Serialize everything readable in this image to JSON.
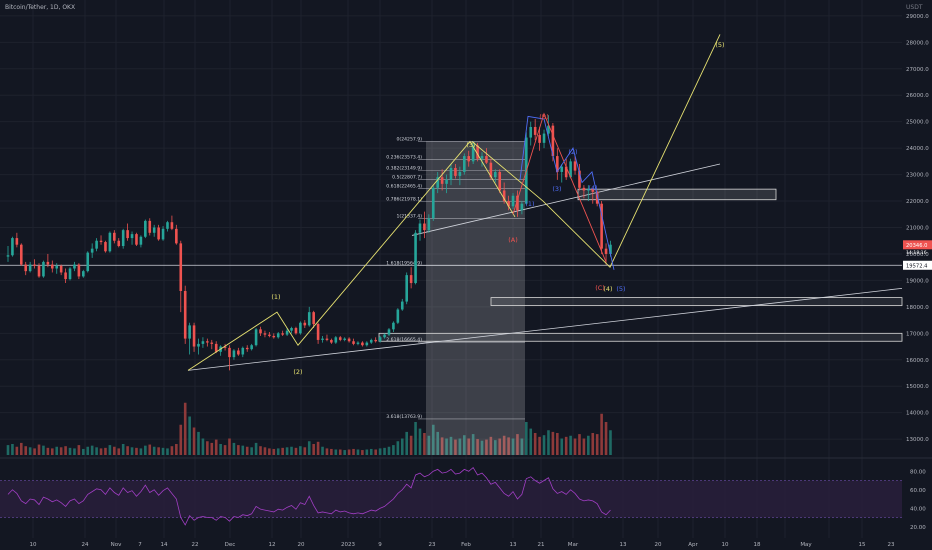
{
  "header": {
    "symbol": "Bitcoin/Tether, 1D, OKX",
    "currency": "USDT"
  },
  "colors": {
    "bg": "#131722",
    "grid": "#1e222d",
    "axis_text": "#b2b5be",
    "up": "#26a69a",
    "down": "#ef5350",
    "vol_up": "#1f6a64",
    "vol_down": "#8e3a3a",
    "wave_yellow": "#e5e070",
    "wave_red": "#ef5350",
    "wave_blue": "#4f6df5",
    "rsi": "#a13ec4",
    "rsi_band": "#2a1f3d",
    "fib": "#d1d4dc",
    "box": "#d9d9d9"
  },
  "chart_data": {
    "type": "candlestick",
    "y_axis": {
      "min": 12400,
      "max": 29600,
      "ticks": [
        13000,
        14000,
        15000,
        16000,
        17000,
        18000,
        19000,
        20000,
        21000,
        22000,
        23000,
        24000,
        25000,
        26000,
        27000,
        28000,
        29000
      ]
    },
    "x_axis_labels": [
      "10",
      "24",
      "Nov",
      "7",
      "14",
      "22",
      "Dec",
      "12",
      "20",
      "2023",
      "9",
      "23",
      "Feb",
      "13",
      "21",
      "Mar",
      "13",
      "20",
      "Apr",
      "10",
      "18",
      "May",
      "15",
      "23"
    ],
    "last_price": "20346.0",
    "countdown": "14:18:16",
    "level_label": "19572.4",
    "ohlc": [
      [
        19900,
        20300,
        19700,
        19950
      ],
      [
        19950,
        20650,
        19900,
        20600
      ],
      [
        20600,
        20800,
        20250,
        20350
      ],
      [
        20350,
        20400,
        19550,
        19600
      ],
      [
        19600,
        19700,
        19200,
        19350
      ],
      [
        19350,
        19700,
        19300,
        19600
      ],
      [
        19600,
        19800,
        19450,
        19550
      ],
      [
        19550,
        19650,
        19100,
        19150
      ],
      [
        19150,
        19750,
        19100,
        19700
      ],
      [
        19700,
        20000,
        19500,
        19600
      ],
      [
        19600,
        19750,
        19300,
        19450
      ],
      [
        19450,
        19650,
        19250,
        19550
      ],
      [
        19550,
        19600,
        19200,
        19300
      ],
      [
        19300,
        19450,
        18900,
        19050
      ],
      [
        19050,
        19500,
        19000,
        19450
      ],
      [
        19450,
        19700,
        19350,
        19600
      ],
      [
        19600,
        19650,
        19050,
        19150
      ],
      [
        19150,
        19400,
        19100,
        19350
      ],
      [
        19350,
        20100,
        19300,
        20050
      ],
      [
        20050,
        20400,
        19850,
        20200
      ],
      [
        20200,
        20600,
        20100,
        20500
      ],
      [
        20500,
        20700,
        20350,
        20450
      ],
      [
        20450,
        20500,
        20050,
        20100
      ],
      [
        20100,
        20850,
        20050,
        20800
      ],
      [
        20800,
        20900,
        20400,
        20500
      ],
      [
        20500,
        20600,
        20250,
        20300
      ],
      [
        20300,
        20950,
        20200,
        20900
      ],
      [
        20900,
        21150,
        20500,
        20600
      ],
      [
        20600,
        20850,
        20350,
        20750
      ],
      [
        20750,
        20800,
        20300,
        20350
      ],
      [
        20350,
        20700,
        20250,
        20650
      ],
      [
        20650,
        21300,
        20600,
        21250
      ],
      [
        21250,
        21350,
        20700,
        20800
      ],
      [
        20800,
        21100,
        20650,
        21000
      ],
      [
        21000,
        21100,
        20500,
        20550
      ],
      [
        20550,
        21050,
        20500,
        20950
      ],
      [
        20950,
        21250,
        20850,
        21200
      ],
      [
        21200,
        21450,
        20900,
        20950
      ],
      [
        20950,
        21100,
        20350,
        20400
      ],
      [
        20400,
        20500,
        17800,
        18600
      ],
      [
        18600,
        18800,
        16600,
        16800
      ],
      [
        16800,
        17400,
        16200,
        17300
      ],
      [
        17300,
        17400,
        16300,
        16500
      ],
      [
        16500,
        16800,
        16200,
        16600
      ],
      [
        16600,
        16850,
        16450,
        16700
      ],
      [
        16700,
        16800,
        16500,
        16650
      ],
      [
        16650,
        16750,
        16400,
        16600
      ],
      [
        16600,
        16700,
        16250,
        16300
      ],
      [
        16300,
        16550,
        16150,
        16500
      ],
      [
        16500,
        16600,
        16350,
        16450
      ],
      [
        16450,
        16550,
        15600,
        16100
      ],
      [
        16100,
        16400,
        16000,
        16350
      ],
      [
        16350,
        16450,
        16150,
        16200
      ],
      [
        16200,
        16500,
        16100,
        16450
      ],
      [
        16450,
        16550,
        16300,
        16400
      ],
      [
        16400,
        16600,
        16350,
        16550
      ],
      [
        16550,
        17200,
        16500,
        17150
      ],
      [
        17150,
        17250,
        16900,
        17000
      ],
      [
        17000,
        17100,
        16850,
        16950
      ],
      [
        16950,
        17050,
        16850,
        16900
      ],
      [
        16900,
        17000,
        16800,
        16850
      ],
      [
        16850,
        17050,
        16800,
        17000
      ],
      [
        17000,
        17100,
        16900,
        16950
      ],
      [
        16950,
        17200,
        16900,
        17100
      ],
      [
        17100,
        17250,
        17000,
        17200
      ],
      [
        17200,
        17250,
        16950,
        17000
      ],
      [
        17000,
        17450,
        16950,
        17400
      ],
      [
        17400,
        17500,
        17200,
        17300
      ],
      [
        17300,
        18000,
        17250,
        17800
      ],
      [
        17800,
        17850,
        17200,
        17350
      ],
      [
        17350,
        17400,
        16600,
        16750
      ],
      [
        16750,
        16900,
        16650,
        16800
      ],
      [
        16800,
        16950,
        16700,
        16750
      ],
      [
        16750,
        16800,
        16600,
        16650
      ],
      [
        16650,
        16900,
        16600,
        16850
      ],
      [
        16850,
        16900,
        16700,
        16750
      ],
      [
        16750,
        16850,
        16700,
        16800
      ],
      [
        16800,
        16850,
        16650,
        16700
      ],
      [
        16700,
        16800,
        16550,
        16600
      ],
      [
        16600,
        16700,
        16550,
        16650
      ],
      [
        16650,
        16700,
        16500,
        16550
      ],
      [
        16550,
        16700,
        16500,
        16650
      ],
      [
        16650,
        16800,
        16600,
        16750
      ],
      [
        16750,
        16850,
        16650,
        16700
      ],
      [
        16700,
        16900,
        16650,
        16850
      ],
      [
        16850,
        17000,
        16800,
        16950
      ],
      [
        16950,
        17200,
        16900,
        17150
      ],
      [
        17150,
        17450,
        17050,
        17400
      ],
      [
        17400,
        17950,
        17350,
        17900
      ],
      [
        17900,
        18300,
        17850,
        18200
      ],
      [
        18200,
        19300,
        18100,
        19200
      ],
      [
        19200,
        19500,
        18700,
        18900
      ],
      [
        18900,
        20900,
        18850,
        20800
      ],
      [
        20800,
        21300,
        20500,
        21150
      ],
      [
        21150,
        21600,
        20600,
        20900
      ],
      [
        20900,
        21500,
        20800,
        21350
      ],
      [
        21350,
        22600,
        21250,
        22500
      ],
      [
        22500,
        23100,
        22300,
        22900
      ],
      [
        22900,
        23200,
        22400,
        22650
      ],
      [
        22650,
        23000,
        22300,
        22800
      ],
      [
        22800,
        23400,
        22600,
        23250
      ],
      [
        23250,
        23400,
        22850,
        22950
      ],
      [
        22950,
        23300,
        22600,
        23100
      ],
      [
        23100,
        23800,
        23000,
        23700
      ],
      [
        23700,
        23900,
        23300,
        23500
      ],
      [
        23500,
        24250,
        23400,
        24100
      ],
      [
        24100,
        24200,
        23500,
        23600
      ],
      [
        23600,
        23850,
        23300,
        23700
      ],
      [
        23700,
        24000,
        23400,
        23450
      ],
      [
        23450,
        23600,
        22800,
        22900
      ],
      [
        22900,
        23200,
        22700,
        23100
      ],
      [
        23100,
        23200,
        22300,
        22400
      ],
      [
        22400,
        22700,
        21900,
        22000
      ],
      [
        22000,
        22200,
        21650,
        21800
      ],
      [
        21800,
        22300,
        21700,
        22200
      ],
      [
        22200,
        22400,
        21400,
        21650
      ],
      [
        21650,
        22000,
        21500,
        21900
      ],
      [
        21900,
        24600,
        21850,
        24400
      ],
      [
        24400,
        25000,
        24100,
        24800
      ],
      [
        24800,
        25100,
        24300,
        24500
      ],
      [
        24500,
        24800,
        23900,
        24200
      ],
      [
        24200,
        24700,
        24000,
        24550
      ],
      [
        24550,
        25250,
        24450,
        24850
      ],
      [
        24850,
        24950,
        23500,
        23700
      ],
      [
        23700,
        24000,
        22800,
        23100
      ],
      [
        23100,
        23400,
        22700,
        23300
      ],
      [
        23300,
        23600,
        22800,
        22900
      ],
      [
        22900,
        23600,
        22850,
        23500
      ],
      [
        23500,
        23700,
        23000,
        23150
      ],
      [
        23150,
        23400,
        22400,
        22500
      ],
      [
        22500,
        22600,
        22100,
        22400
      ],
      [
        22400,
        22600,
        22000,
        22450
      ],
      [
        22450,
        22500,
        21900,
        22350
      ],
      [
        22350,
        22400,
        21800,
        21900
      ],
      [
        21900,
        22000,
        20000,
        20200
      ],
      [
        20200,
        20400,
        19600,
        20000
      ],
      [
        20000,
        20500,
        19900,
        20350
      ]
    ],
    "volume": [
      0.18,
      0.2,
      0.15,
      0.22,
      0.16,
      0.14,
      0.12,
      0.19,
      0.17,
      0.13,
      0.12,
      0.15,
      0.14,
      0.16,
      0.13,
      0.12,
      0.18,
      0.11,
      0.15,
      0.17,
      0.14,
      0.12,
      0.13,
      0.18,
      0.15,
      0.12,
      0.2,
      0.16,
      0.14,
      0.13,
      0.12,
      0.17,
      0.19,
      0.15,
      0.14,
      0.13,
      0.12,
      0.16,
      0.2,
      0.55,
      0.95,
      0.7,
      0.5,
      0.42,
      0.3,
      0.25,
      0.22,
      0.28,
      0.2,
      0.18,
      0.3,
      0.22,
      0.18,
      0.17,
      0.15,
      0.14,
      0.22,
      0.16,
      0.14,
      0.12,
      0.11,
      0.12,
      0.13,
      0.14,
      0.15,
      0.13,
      0.16,
      0.14,
      0.25,
      0.2,
      0.24,
      0.15,
      0.12,
      0.11,
      0.1,
      0.1,
      0.09,
      0.1,
      0.11,
      0.1,
      0.09,
      0.1,
      0.11,
      0.1,
      0.12,
      0.13,
      0.15,
      0.18,
      0.25,
      0.3,
      0.42,
      0.35,
      0.6,
      0.48,
      0.4,
      0.35,
      0.55,
      0.42,
      0.32,
      0.3,
      0.33,
      0.28,
      0.3,
      0.36,
      0.3,
      0.38,
      0.29,
      0.26,
      0.28,
      0.33,
      0.27,
      0.3,
      0.35,
      0.32,
      0.3,
      0.38,
      0.3,
      0.6,
      0.48,
      0.4,
      0.33,
      0.36,
      0.45,
      0.42,
      0.4,
      0.3,
      0.33,
      0.35,
      0.3,
      0.38,
      0.3,
      0.35,
      0.4,
      0.38,
      0.75,
      0.6,
      0.45
    ],
    "rsi": {
      "ticks": [
        20,
        40,
        60,
        80
      ],
      "band": [
        30,
        70
      ],
      "values": [
        55,
        60,
        56,
        48,
        45,
        50,
        49,
        44,
        52,
        50,
        47,
        49,
        46,
        42,
        48,
        50,
        45,
        48,
        55,
        58,
        61,
        60,
        55,
        62,
        57,
        54,
        62,
        57,
        59,
        53,
        58,
        65,
        57,
        60,
        54,
        59,
        62,
        56,
        50,
        30,
        22,
        32,
        27,
        30,
        31,
        30,
        30,
        27,
        31,
        30,
        26,
        31,
        30,
        33,
        32,
        34,
        42,
        39,
        38,
        37,
        36,
        39,
        38,
        41,
        43,
        39,
        46,
        44,
        53,
        43,
        35,
        36,
        35,
        34,
        38,
        36,
        37,
        35,
        34,
        35,
        34,
        36,
        38,
        37,
        40,
        42,
        46,
        50,
        56,
        60,
        66,
        62,
        76,
        78,
        74,
        76,
        80,
        82,
        78,
        79,
        82,
        77,
        78,
        82,
        80,
        84,
        76,
        78,
        73,
        66,
        68,
        62,
        56,
        53,
        58,
        50,
        55,
        72,
        74,
        70,
        67,
        70,
        73,
        61,
        56,
        58,
        55,
        60,
        56,
        50,
        48,
        49,
        48,
        45,
        36,
        33,
        38
      ]
    },
    "annotations": {
      "wave_labels_yellow": [
        "(1)",
        "(2)",
        "(3)",
        "(4)",
        "(5)"
      ],
      "wave_labels_red": [
        "(A)",
        "(B)",
        "(C)"
      ],
      "wave_labels_blue": [
        "(1)",
        "(2)",
        "(3)",
        "(4)",
        "(5)"
      ],
      "fib_labels": [
        {
          "text": "0(24257.9)",
          "price": 24257.9
        },
        {
          "text": "0.236(23573.4)",
          "price": 23573.4
        },
        {
          "text": "0.382(23149.9)",
          "price": 23149.9
        },
        {
          "text": "0.5(22807.7)",
          "price": 22807.7
        },
        {
          "text": "0.618(22465.4)",
          "price": 22465.4
        },
        {
          "text": "0.786(21978.1)",
          "price": 21978.1
        },
        {
          "text": "1(21337.4)",
          "price": 21337.4
        },
        {
          "text": "1.618(19564.9)",
          "price": 19564.9
        },
        {
          "text": "2.618(16665.4)",
          "price": 16665.4
        },
        {
          "text": "3.618(13763.9)",
          "price": 13763.9
        }
      ]
    }
  }
}
